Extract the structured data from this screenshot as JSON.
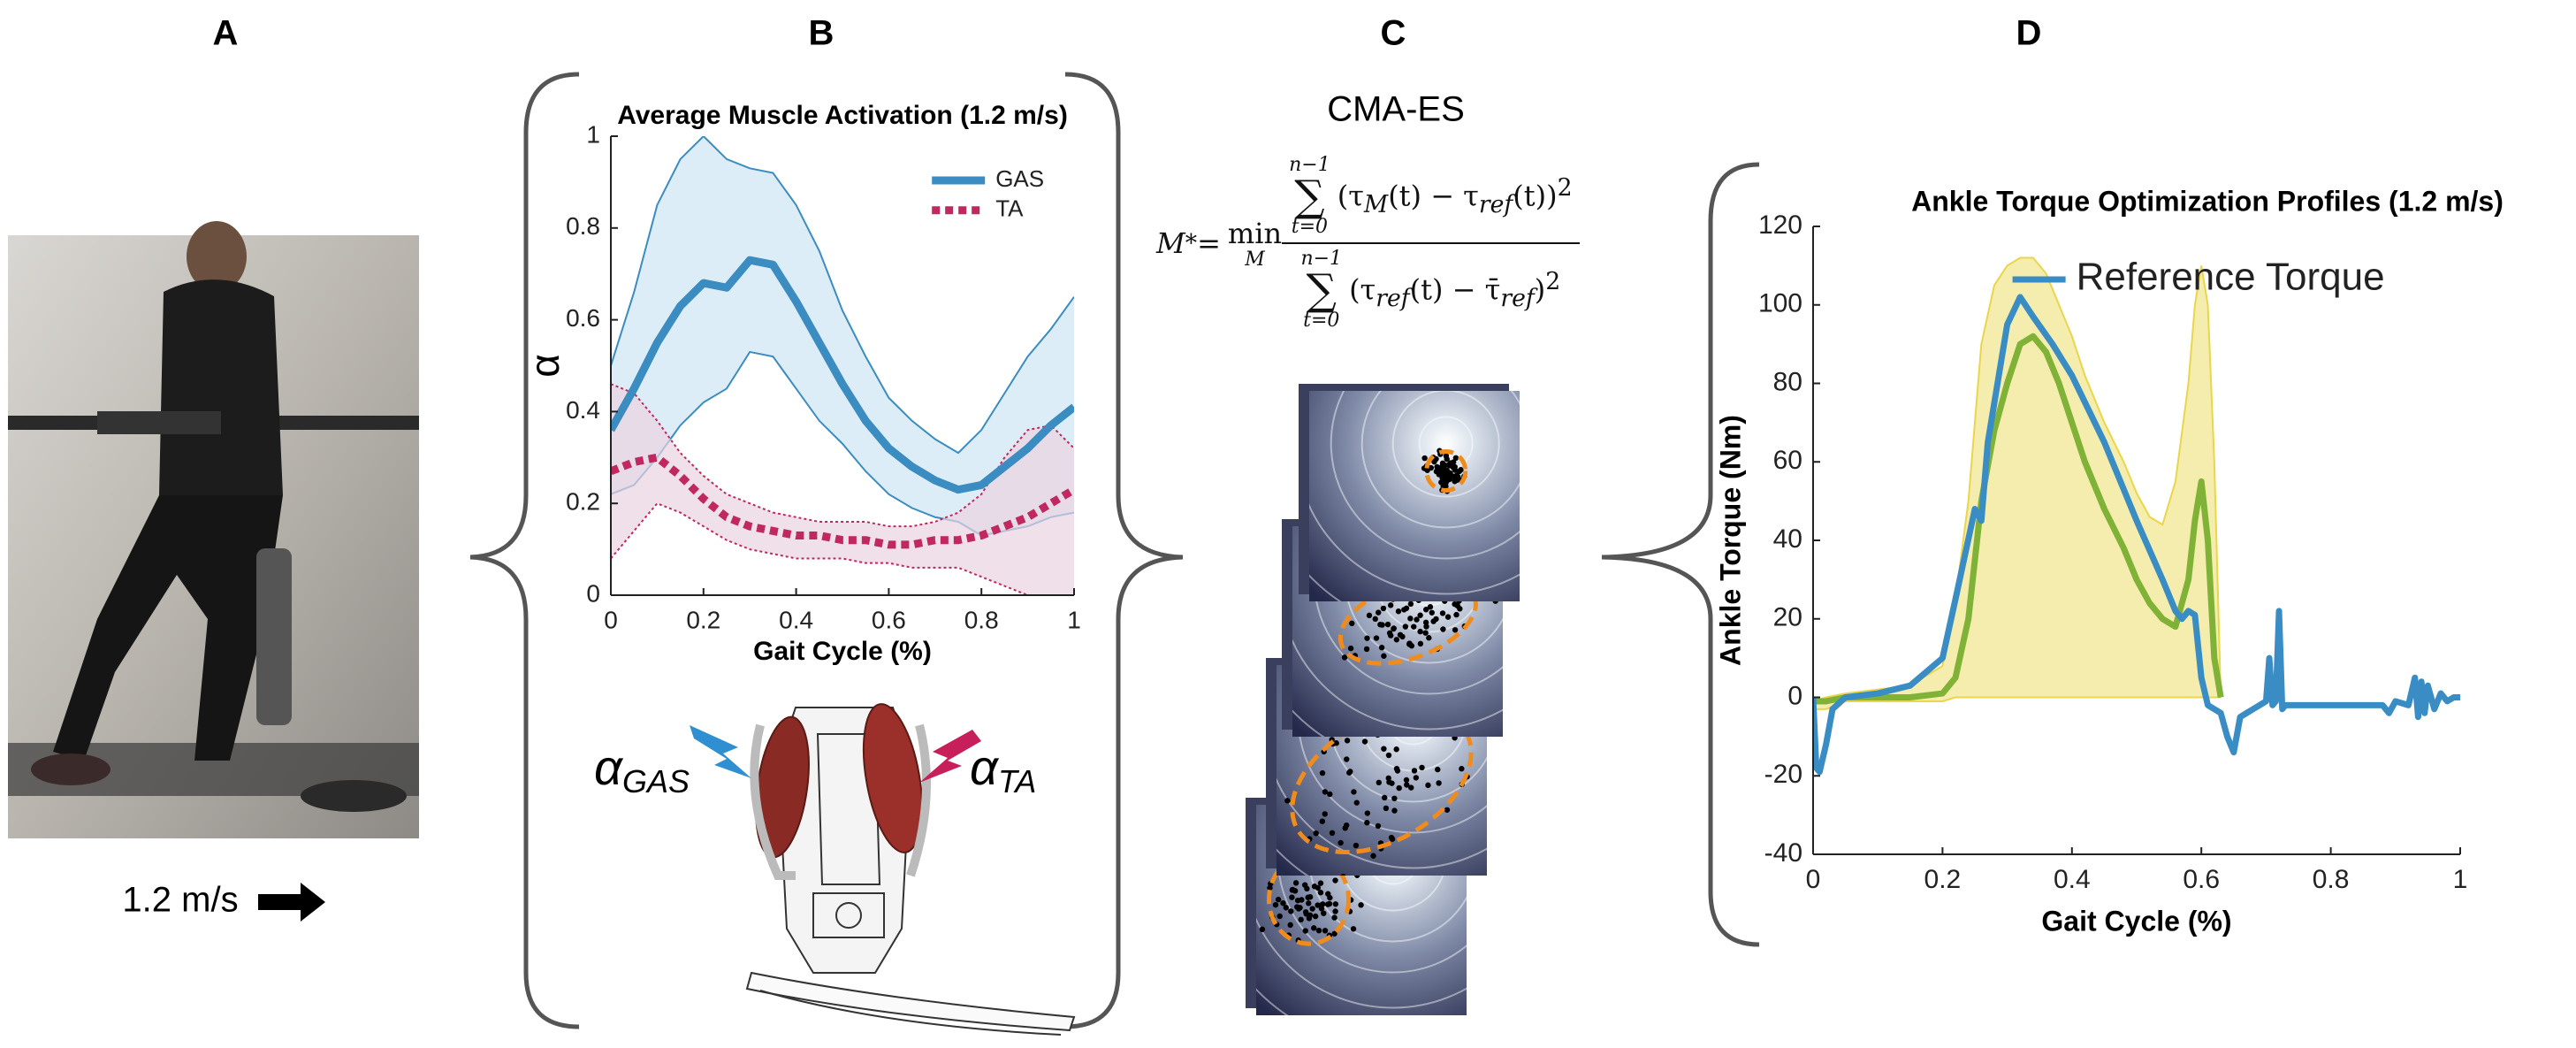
{
  "panel_labels": [
    "A",
    "B",
    "C",
    "D"
  ],
  "panel_a": {
    "speed": "1.2 m/s"
  },
  "panel_b": {
    "alpha": "α",
    "gas_sub": "GAS",
    "ta_sub": "TA"
  },
  "panel_c": {
    "title": "CMA-ES",
    "equation": {
      "lhs": [
        {
          "text": "M"
        },
        {
          "sup": "*"
        },
        {
          "text": " = "
        }
      ],
      "operator": "min",
      "operator_sub": "M",
      "numerator": {
        "to": "n−1",
        "sum": "∑",
        "from": "t=0",
        "body": [
          {
            "text": "(τ"
          },
          {
            "sub": "M"
          },
          {
            "text": "(t) − τ"
          },
          {
            "sub": "ref"
          },
          {
            "text": "(t))"
          },
          {
            "sup": "2"
          }
        ]
      },
      "denominator": {
        "to": "n−1",
        "sum": "∑",
        "from": "t=0",
        "body": [
          {
            "text": "(τ"
          },
          {
            "sub": "ref"
          },
          {
            "text": "(t) − τ̄"
          },
          {
            "sub": "ref"
          },
          {
            "text": ")"
          },
          {
            "sup": "2"
          }
        ]
      }
    }
  },
  "chart_data": [
    {
      "type": "line",
      "title": "Average Muscle Activation (1.2 m/s)",
      "x_label": "Gait Cycle (%)",
      "y_label": "α",
      "x": [
        0,
        0.05,
        0.1,
        0.15,
        0.2,
        0.25,
        0.3,
        0.35,
        0.4,
        0.45,
        0.5,
        0.55,
        0.6,
        0.65,
        0.7,
        0.75,
        0.8,
        0.85,
        0.9,
        0.95,
        1
      ],
      "xlim": [
        0,
        1
      ],
      "ylim": [
        0,
        1
      ],
      "xticks": [
        0,
        0.2,
        0.4,
        0.6,
        0.8,
        1
      ],
      "yticks": [
        0,
        0.2,
        0.4,
        0.6,
        0.8,
        1
      ],
      "legend": "upper right",
      "series": [
        {
          "name": "GAS",
          "color": "#3b8cc0",
          "band_color": "#cfe6f5",
          "line_style": "solid",
          "values": [
            0.36,
            0.45,
            0.55,
            0.63,
            0.68,
            0.67,
            0.73,
            0.72,
            0.64,
            0.55,
            0.46,
            0.38,
            0.32,
            0.28,
            0.25,
            0.23,
            0.24,
            0.28,
            0.32,
            0.37,
            0.41
          ],
          "upper": [
            0.5,
            0.66,
            0.85,
            0.95,
            1.0,
            0.95,
            0.93,
            0.92,
            0.85,
            0.75,
            0.62,
            0.52,
            0.43,
            0.38,
            0.34,
            0.31,
            0.36,
            0.44,
            0.52,
            0.58,
            0.65
          ],
          "lower": [
            0.22,
            0.24,
            0.3,
            0.37,
            0.42,
            0.45,
            0.53,
            0.52,
            0.45,
            0.38,
            0.33,
            0.27,
            0.22,
            0.19,
            0.17,
            0.16,
            0.13,
            0.14,
            0.15,
            0.17,
            0.18
          ]
        },
        {
          "name": "TA",
          "color": "#c0285f",
          "band_color": "#ead3e0",
          "line_style": "dotted",
          "values": [
            0.27,
            0.29,
            0.3,
            0.26,
            0.21,
            0.17,
            0.15,
            0.14,
            0.13,
            0.13,
            0.12,
            0.12,
            0.11,
            0.11,
            0.12,
            0.12,
            0.13,
            0.15,
            0.17,
            0.2,
            0.23
          ],
          "upper": [
            0.46,
            0.44,
            0.38,
            0.31,
            0.26,
            0.22,
            0.2,
            0.18,
            0.17,
            0.16,
            0.16,
            0.16,
            0.15,
            0.15,
            0.16,
            0.18,
            0.22,
            0.3,
            0.36,
            0.37,
            0.32
          ],
          "lower": [
            0.08,
            0.14,
            0.2,
            0.18,
            0.15,
            0.12,
            0.1,
            0.09,
            0.08,
            0.08,
            0.08,
            0.07,
            0.07,
            0.06,
            0.06,
            0.06,
            0.04,
            0.02,
            0,
            0,
            0
          ]
        }
      ]
    },
    {
      "type": "line",
      "title": "Ankle Torque Optimization Profiles (1.2 m/s)",
      "x_label": "Gait Cycle (%)",
      "y_label": "Ankle Torque (Nm)",
      "xlim": [
        0,
        1
      ],
      "ylim": [
        -40,
        120
      ],
      "xticks": [
        0,
        0.2,
        0.4,
        0.6,
        0.8,
        1
      ],
      "yticks": [
        -40,
        -20,
        0,
        20,
        40,
        60,
        80,
        100,
        120
      ],
      "legend": "upper right",
      "series": [
        {
          "color": "#7fb236",
          "band_color": "#e9d64a",
          "line_style": "solid",
          "x": [
            0,
            0.02,
            0.05,
            0.1,
            0.15,
            0.2,
            0.22,
            0.24,
            0.26,
            0.28,
            0.3,
            0.32,
            0.34,
            0.36,
            0.38,
            0.4,
            0.42,
            0.45,
            0.48,
            0.5,
            0.52,
            0.54,
            0.56,
            0.58,
            0.59,
            0.6,
            0.61,
            0.62,
            0.63
          ],
          "values": [
            -1,
            -1,
            0,
            0,
            0,
            1,
            5,
            20,
            50,
            68,
            80,
            90,
            92,
            88,
            80,
            70,
            60,
            48,
            38,
            30,
            24,
            20,
            18,
            30,
            45,
            55,
            40,
            10,
            0
          ],
          "upper": [
            -1,
            0,
            1,
            2,
            3,
            8,
            25,
            50,
            90,
            105,
            110,
            112,
            112,
            108,
            100,
            92,
            82,
            70,
            60,
            52,
            46,
            44,
            55,
            80,
            100,
            110,
            100,
            60,
            0
          ],
          "lower": [
            -3,
            -3,
            -1,
            -1,
            -1,
            -1,
            0,
            0,
            0,
            0,
            0,
            0,
            0,
            0,
            0,
            0,
            0,
            0,
            0,
            0,
            0,
            0,
            0,
            0,
            0,
            0,
            0,
            0,
            0
          ]
        },
        {
          "name": "Reference Torque",
          "color": "#3a8dc4",
          "line_style": "solid",
          "x": [
            0,
            0.005,
            0.01,
            0.02,
            0.03,
            0.05,
            0.1,
            0.15,
            0.2,
            0.22,
            0.25,
            0.26,
            0.27,
            0.28,
            0.3,
            0.32,
            0.34,
            0.37,
            0.4,
            0.45,
            0.5,
            0.54,
            0.56,
            0.57,
            0.58,
            0.59,
            0.6,
            0.61,
            0.63,
            0.64,
            0.65,
            0.66,
            0.68,
            0.69,
            0.7,
            0.705,
            0.71,
            0.715,
            0.72,
            0.725,
            0.73,
            0.8,
            0.88,
            0.89,
            0.9,
            0.92,
            0.93,
            0.935,
            0.94,
            0.945,
            0.95,
            0.96,
            0.97,
            0.98,
            0.99,
            1.0
          ],
          "values": [
            0,
            -18,
            -19,
            -12,
            -3,
            0,
            1,
            3,
            10,
            25,
            48,
            45,
            65,
            75,
            95,
            102,
            97,
            90,
            82,
            65,
            45,
            30,
            22,
            20,
            22,
            21,
            5,
            -2,
            -4,
            -10,
            -14,
            -5,
            -3,
            -2,
            -1,
            10,
            -2,
            -1,
            22,
            -3,
            -2,
            -2,
            -2,
            -4,
            -1,
            -2,
            5,
            -5,
            4,
            -4,
            3,
            -3,
            1,
            -1,
            0,
            0
          ]
        }
      ]
    }
  ]
}
